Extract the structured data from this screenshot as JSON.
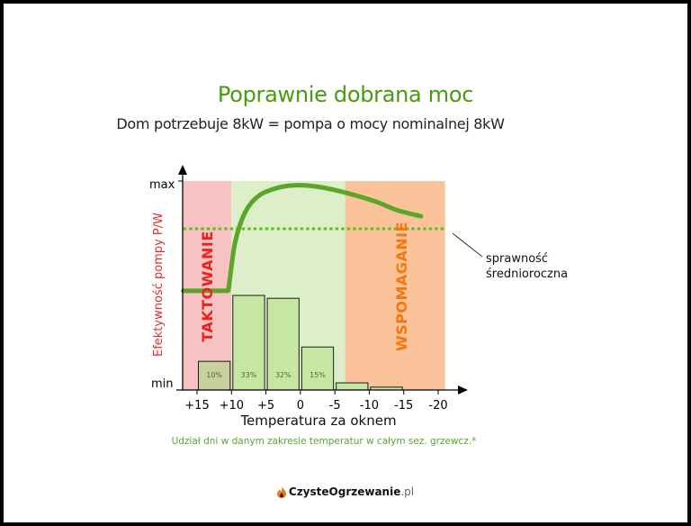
{
  "title": "Poprawnie dobrana moc",
  "subtitle": "Dom potrzebuje 8kW = pompa o mocy nominalnej 8kW",
  "chart_data": {
    "type": "bar",
    "categories": [
      "+15",
      "+10",
      "+5",
      "0",
      "-5",
      "-10",
      "-15",
      "-20"
    ],
    "xlabel": "Temperatura za oknem",
    "ylabel": "Efektywność pompy P/W",
    "y_ticks": {
      "max": "max",
      "min": "min"
    },
    "bars": [
      {
        "from": 15,
        "to": 10,
        "share": 0.1,
        "label": "10%"
      },
      {
        "from": 10,
        "to": 5,
        "share": 0.33,
        "label": "33%"
      },
      {
        "from": 5,
        "to": 0,
        "share": 0.32,
        "label": "32%"
      },
      {
        "from": 0,
        "to": -5,
        "share": 0.15,
        "label": "15%"
      },
      {
        "from": -5,
        "to": -10,
        "share": 0.025,
        "label": ""
      },
      {
        "from": -10,
        "to": -15,
        "share": 0.01,
        "label": ""
      }
    ],
    "zones": [
      {
        "label": "TAKTOWANIE",
        "from": 17,
        "to": 10,
        "color": "#f9c2c2",
        "text_color": "#e8231f"
      },
      {
        "label": "",
        "from": 10,
        "to": -6.5,
        "color": "#dcefc8"
      },
      {
        "label": "WSPOMAGANIE",
        "from": -6.5,
        "to": -21,
        "color": "#fbc39a",
        "text_color": "#f7760c"
      }
    ],
    "efficiency_curve": {
      "color": "#5aa52a",
      "points": [
        [
          17,
          0.47
        ],
        [
          10.5,
          0.47
        ],
        [
          9.5,
          0.7
        ],
        [
          8,
          0.85
        ],
        [
          6,
          0.93
        ],
        [
          3,
          0.97
        ],
        [
          0,
          0.98
        ],
        [
          -3,
          0.97
        ],
        [
          -7,
          0.94
        ],
        [
          -11,
          0.9
        ],
        [
          -14,
          0.86
        ],
        [
          -17.5,
          0.83
        ]
      ]
    },
    "average_line": {
      "value": 0.8,
      "label_line1": "sprawność",
      "label_line2": "średnioroczna",
      "color": "#5fbf20"
    },
    "note": "Udział dni w danym zakresie temperatur w całym sez. grzewcz.*"
  },
  "footer": {
    "brand": "CzysteOgrzewanie",
    "tld": ".pl"
  }
}
